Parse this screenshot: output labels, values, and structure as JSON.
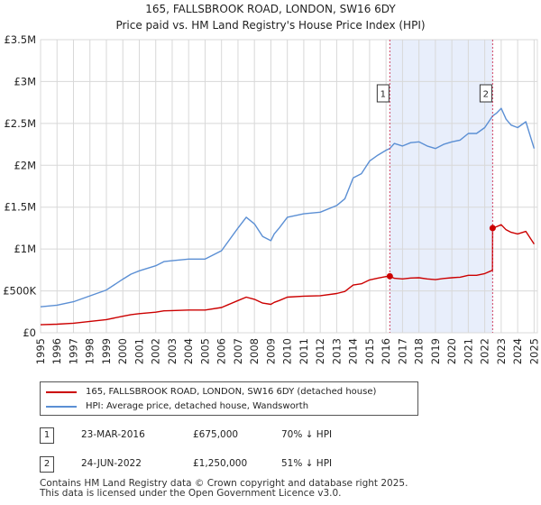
{
  "chart_data": {
    "type": "line",
    "title": "165, FALLSBROOK ROAD, LONDON, SW16 6DY",
    "subtitle": "Price paid vs. HM Land Registry's House Price Index (HPI)",
    "xlabel": "",
    "ylabel": "",
    "xlim": [
      1995,
      2025.2
    ],
    "ylim": [
      0,
      3500000
    ],
    "yticks": [
      {
        "value": 0,
        "label": "£0"
      },
      {
        "value": 500000,
        "label": "£500K"
      },
      {
        "value": 1000000,
        "label": "£1M"
      },
      {
        "value": 1500000,
        "label": "£1.5M"
      },
      {
        "value": 2000000,
        "label": "£2M"
      },
      {
        "value": 2500000,
        "label": "£2.5M"
      },
      {
        "value": 3000000,
        "label": "£3M"
      },
      {
        "value": 3500000,
        "label": "£3.5M"
      }
    ],
    "xticks": [
      "1995",
      "1996",
      "1997",
      "1998",
      "1999",
      "2000",
      "2001",
      "2002",
      "2003",
      "2004",
      "2005",
      "2006",
      "2007",
      "2008",
      "2009",
      "2010",
      "2011",
      "2012",
      "2013",
      "2014",
      "2015",
      "2016",
      "2017",
      "2018",
      "2019",
      "2020",
      "2021",
      "2022",
      "2023",
      "2024",
      "2025"
    ],
    "grid": true,
    "shaded_region": {
      "from": 2016.23,
      "to": 2022.48,
      "color": "#e8eefb"
    },
    "series": [
      {
        "name": "HPI: Average price, detached house, Wandsworth",
        "color": "#5b8fd4",
        "x": [
          1995.0,
          1996.0,
          1997.0,
          1998.0,
          1999.0,
          2000.0,
          2000.5,
          2001.0,
          2002.0,
          2002.5,
          2003.0,
          2004.0,
          2005.0,
          2006.0,
          2007.0,
          2007.5,
          2008.0,
          2008.5,
          2009.0,
          2009.2,
          2009.5,
          2010.0,
          2011.0,
          2012.0,
          2013.0,
          2013.5,
          2014.0,
          2014.5,
          2015.0,
          2015.5,
          2016.0,
          2016.23,
          2016.5,
          2017.0,
          2017.5,
          2018.0,
          2018.5,
          2019.0,
          2019.5,
          2020.0,
          2020.5,
          2021.0,
          2021.5,
          2022.0,
          2022.48,
          2022.7,
          2023.0,
          2023.3,
          2023.6,
          2024.0,
          2024.5,
          2025.0
        ],
        "values": [
          310000,
          330000,
          370000,
          440000,
          510000,
          640000,
          700000,
          740000,
          800000,
          850000,
          860000,
          880000,
          880000,
          980000,
          1250000,
          1380000,
          1300000,
          1150000,
          1100000,
          1180000,
          1250000,
          1380000,
          1420000,
          1440000,
          1520000,
          1600000,
          1850000,
          1900000,
          2050000,
          2120000,
          2180000,
          2200000,
          2260000,
          2230000,
          2270000,
          2280000,
          2230000,
          2200000,
          2250000,
          2280000,
          2300000,
          2380000,
          2380000,
          2450000,
          2590000,
          2620000,
          2680000,
          2550000,
          2480000,
          2450000,
          2520000,
          2200000
        ]
      },
      {
        "name": "165, FALLSBROOK ROAD, LONDON, SW16 6DY (detached house)",
        "color": "#cc0000",
        "x": [
          1995.0,
          1996.0,
          1997.0,
          1998.0,
          1999.0,
          2000.0,
          2000.5,
          2001.0,
          2002.0,
          2002.5,
          2003.0,
          2004.0,
          2005.0,
          2006.0,
          2007.0,
          2007.5,
          2008.0,
          2008.5,
          2009.0,
          2009.2,
          2009.5,
          2010.0,
          2011.0,
          2012.0,
          2013.0,
          2013.5,
          2014.0,
          2014.5,
          2015.0,
          2015.5,
          2016.0,
          2016.23,
          2016.5,
          2017.0,
          2017.5,
          2018.0,
          2018.5,
          2019.0,
          2019.5,
          2020.0,
          2020.5,
          2021.0,
          2021.5,
          2022.0,
          2022.47,
          2022.48,
          2022.7,
          2023.0,
          2023.3,
          2023.6,
          2024.0,
          2024.5,
          2025.0
        ],
        "values": [
          96000,
          102000,
          114000,
          136000,
          157000,
          197000,
          216000,
          228000,
          246000,
          262000,
          265000,
          271000,
          271000,
          302000,
          385000,
          425000,
          400000,
          354000,
          339000,
          363000,
          385000,
          425000,
          437000,
          443000,
          468000,
          493000,
          570000,
          585000,
          631000,
          653000,
          671000,
          675000,
          651000,
          643000,
          654000,
          657000,
          643000,
          634000,
          648000,
          657000,
          663000,
          686000,
          686000,
          706000,
          746000,
          1250000,
          1265000,
          1290000,
          1230000,
          1200000,
          1180000,
          1210000,
          1060000
        ]
      }
    ],
    "markers": [
      {
        "id": "1",
        "x": 2016.23,
        "value": 675000
      },
      {
        "id": "2",
        "x": 2022.48,
        "value": 1250000
      }
    ]
  },
  "legend": {
    "items": [
      {
        "label": "165, FALLSBROOK ROAD, LONDON, SW16 6DY (detached house)",
        "color": "#cc0000"
      },
      {
        "label": "HPI: Average price, detached house, Wandsworth",
        "color": "#5b8fd4"
      }
    ]
  },
  "sales": [
    {
      "num": "1",
      "date": "23-MAR-2016",
      "price": "£675,000",
      "hpi": "70% ↓ HPI"
    },
    {
      "num": "2",
      "date": "24-JUN-2022",
      "price": "£1,250,000",
      "hpi": "51% ↓ HPI"
    }
  ],
  "footer": {
    "line1": "Contains HM Land Registry data © Crown copyright and database right 2025.",
    "line2": "This data is licensed under the Open Government Licence v3.0."
  }
}
